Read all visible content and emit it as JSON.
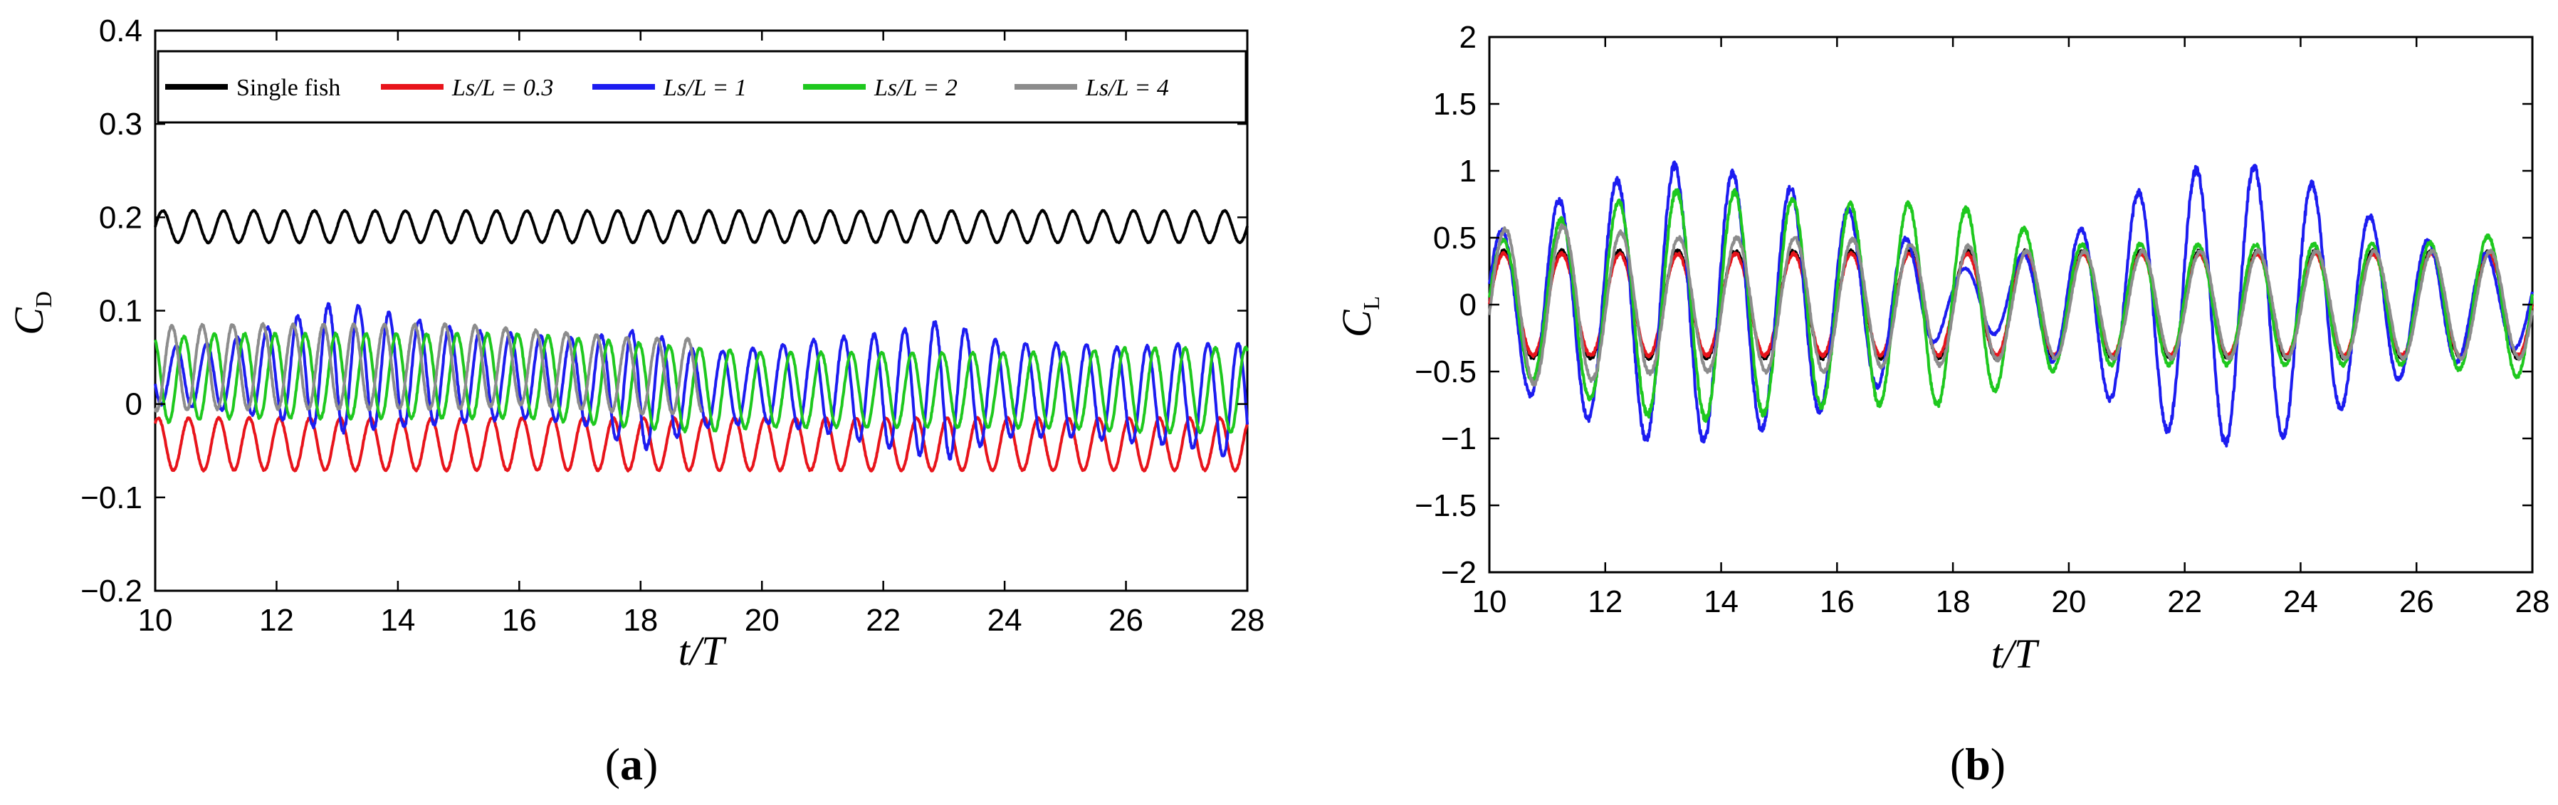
{
  "chart_data": [
    {
      "type": "line",
      "panel_label": "(a)",
      "xlabel": "t/T",
      "ylabel": "C_D",
      "xlim": [
        10,
        28
      ],
      "ylim": [
        -0.2,
        0.4
      ],
      "xticks": [
        10,
        12,
        14,
        16,
        18,
        20,
        22,
        24,
        26,
        28
      ],
      "yticks": [
        -0.2,
        -0.1,
        0,
        0.1,
        0.2,
        0.3,
        0.4
      ],
      "ytick_labels": [
        "−0.2",
        "−0.1",
        "0",
        "0.1",
        "0.2",
        "0.3",
        "0.4"
      ],
      "grid": false,
      "legend_position": "top",
      "legend": [
        "Single fish",
        "Ls/L = 0.3",
        "Ls/L = 1",
        "Ls/L = 2",
        "Ls/L = 4"
      ],
      "oscillation_period_tT": 0.5,
      "series": [
        {
          "name": "Single fish",
          "color": "#000000",
          "t": [
            10,
            12,
            14,
            16,
            18,
            20,
            22,
            24,
            26,
            28
          ],
          "mean": [
            0.19,
            0.19,
            0.19,
            0.19,
            0.19,
            0.19,
            0.19,
            0.19,
            0.19,
            0.19
          ],
          "amplitude": [
            0.017,
            0.017,
            0.017,
            0.017,
            0.017,
            0.017,
            0.017,
            0.017,
            0.017,
            0.017
          ]
        },
        {
          "name": "Ls/L = 0.3",
          "color": "#e8141b",
          "t": [
            10,
            12,
            14,
            16,
            18,
            20,
            22,
            24,
            26,
            28
          ],
          "mean": [
            -0.043,
            -0.043,
            -0.043,
            -0.043,
            -0.043,
            -0.043,
            -0.043,
            -0.043,
            -0.043,
            -0.043
          ],
          "amplitude": [
            0.028,
            0.028,
            0.028,
            0.028,
            0.028,
            0.028,
            0.028,
            0.028,
            0.028,
            0.028
          ]
        },
        {
          "name": "Ls/L = 1",
          "color": "#1c1cf0",
          "t": [
            10,
            11,
            12,
            13,
            14,
            15,
            16,
            17,
            18,
            19,
            20,
            21,
            22,
            23,
            24,
            25,
            26,
            27,
            28
          ],
          "mean": [
            0.03,
            0.03,
            0.035,
            0.04,
            0.035,
            0.03,
            0.03,
            0.025,
            0.015,
            0.015,
            0.02,
            0.02,
            0.015,
            0.015,
            0.015,
            0.015,
            0.01,
            0.01,
            0.0
          ],
          "amplitude": [
            0.03,
            0.035,
            0.05,
            0.07,
            0.06,
            0.05,
            0.045,
            0.045,
            0.065,
            0.04,
            0.04,
            0.05,
            0.06,
            0.075,
            0.05,
            0.05,
            0.05,
            0.055,
            0.065
          ]
        },
        {
          "name": "Ls/L = 2",
          "color": "#1ec81e",
          "t": [
            10,
            11,
            12,
            13,
            14,
            15,
            16,
            17,
            18,
            19,
            20,
            21,
            22,
            23,
            24,
            25,
            26,
            27,
            28
          ],
          "mean": [
            0.025,
            0.03,
            0.03,
            0.03,
            0.03,
            0.03,
            0.03,
            0.025,
            0.02,
            0.015,
            0.015,
            0.015,
            0.015,
            0.015,
            0.015,
            0.015,
            0.015,
            0.015,
            0.015
          ],
          "amplitude": [
            0.045,
            0.045,
            0.045,
            0.045,
            0.045,
            0.045,
            0.045,
            0.045,
            0.045,
            0.045,
            0.04,
            0.04,
            0.04,
            0.04,
            0.04,
            0.04,
            0.045,
            0.045,
            0.045
          ]
        },
        {
          "name": "Ls/L = 4",
          "color": "#8c8c8c",
          "t": [
            10,
            11,
            12,
            13,
            14,
            15,
            16,
            17,
            18,
            19
          ],
          "mean": [
            0.038,
            0.04,
            0.04,
            0.04,
            0.04,
            0.04,
            0.04,
            0.035,
            0.03,
            0.03
          ],
          "amplitude": [
            0.045,
            0.045,
            0.045,
            0.045,
            0.045,
            0.045,
            0.04,
            0.04,
            0.04,
            0.04
          ]
        }
      ]
    },
    {
      "type": "line",
      "panel_label": "(b)",
      "xlabel": "t/T",
      "ylabel": "C_L",
      "xlim": [
        10,
        28
      ],
      "ylim": [
        -2,
        2
      ],
      "xticks": [
        10,
        12,
        14,
        16,
        18,
        20,
        22,
        24,
        26,
        28
      ],
      "yticks": [
        -2,
        -1.5,
        -1,
        -0.5,
        0,
        0.5,
        1,
        1.5,
        2
      ],
      "ytick_labels": [
        "−2",
        "−1.5",
        "−1",
        "−0.5",
        "0",
        "0.5",
        "1",
        "1.5",
        "2"
      ],
      "grid": false,
      "oscillation_period_tT": 1.0,
      "series": [
        {
          "name": "Single fish",
          "color": "#000000",
          "t": [
            10,
            12,
            14,
            16,
            18,
            20,
            22,
            24,
            26,
            28
          ],
          "mean": [
            0,
            0,
            0,
            0,
            0,
            0,
            0,
            0,
            0,
            0
          ],
          "amplitude": [
            0.4,
            0.4,
            0.4,
            0.4,
            0.4,
            0.4,
            0.4,
            0.4,
            0.4,
            0.4
          ]
        },
        {
          "name": "Ls/L = 0.3",
          "color": "#e8141b",
          "t": [
            10,
            12,
            14,
            16,
            18,
            20,
            22,
            24,
            26,
            28
          ],
          "mean": [
            0,
            0,
            0,
            0,
            0,
            0,
            0,
            0,
            0,
            0
          ],
          "amplitude": [
            0.38,
            0.38,
            0.38,
            0.38,
            0.38,
            0.38,
            0.38,
            0.38,
            0.38,
            0.38
          ]
        },
        {
          "name": "Ls/L = 1",
          "color": "#1c1cf0",
          "t": [
            10,
            11,
            12,
            13,
            14,
            15,
            16,
            17,
            18,
            19,
            20,
            21,
            22,
            23,
            24,
            25,
            26,
            27,
            28
          ],
          "mean": [
            0,
            0,
            0,
            0,
            0,
            0,
            0,
            0,
            0.05,
            0.05,
            0,
            0,
            0,
            0,
            0,
            0,
            0,
            0,
            0
          ],
          "amplitude": [
            0.5,
            0.75,
            0.9,
            1.05,
            1.0,
            0.9,
            0.75,
            0.55,
            0.2,
            0.3,
            0.5,
            0.8,
            1.0,
            1.05,
            0.95,
            0.7,
            0.5,
            0.4,
            0.3
          ]
        },
        {
          "name": "Ls/L = 2",
          "color": "#1ec81e",
          "t": [
            10,
            11,
            12,
            13,
            14,
            15,
            16,
            17,
            18,
            19,
            20,
            21,
            22,
            23,
            24,
            25,
            26,
            27,
            28
          ],
          "mean": [
            0,
            0,
            0,
            0,
            0,
            0,
            0,
            0,
            0,
            0,
            0,
            0,
            0,
            0,
            0,
            0,
            0,
            0,
            0
          ],
          "amplitude": [
            0.45,
            0.6,
            0.75,
            0.85,
            0.85,
            0.8,
            0.75,
            0.75,
            0.75,
            0.6,
            0.45,
            0.45,
            0.45,
            0.45,
            0.45,
            0.45,
            0.45,
            0.5,
            0.55
          ]
        },
        {
          "name": "Ls/L = 4",
          "color": "#8c8c8c",
          "t": [
            10,
            11,
            12,
            13,
            14,
            15,
            16,
            17,
            18,
            19,
            20,
            21,
            22,
            23,
            24,
            25,
            26,
            27,
            28
          ],
          "mean": [
            0,
            0,
            0,
            0,
            0,
            0,
            0,
            0,
            0,
            0,
            0,
            0,
            0,
            0,
            0,
            0,
            0,
            0,
            0
          ],
          "amplitude": [
            0.55,
            0.6,
            0.55,
            0.5,
            0.5,
            0.5,
            0.5,
            0.45,
            0.45,
            0.4,
            0.4,
            0.4,
            0.4,
            0.4,
            0.4,
            0.4,
            0.4,
            0.4,
            0.4
          ]
        }
      ]
    }
  ]
}
